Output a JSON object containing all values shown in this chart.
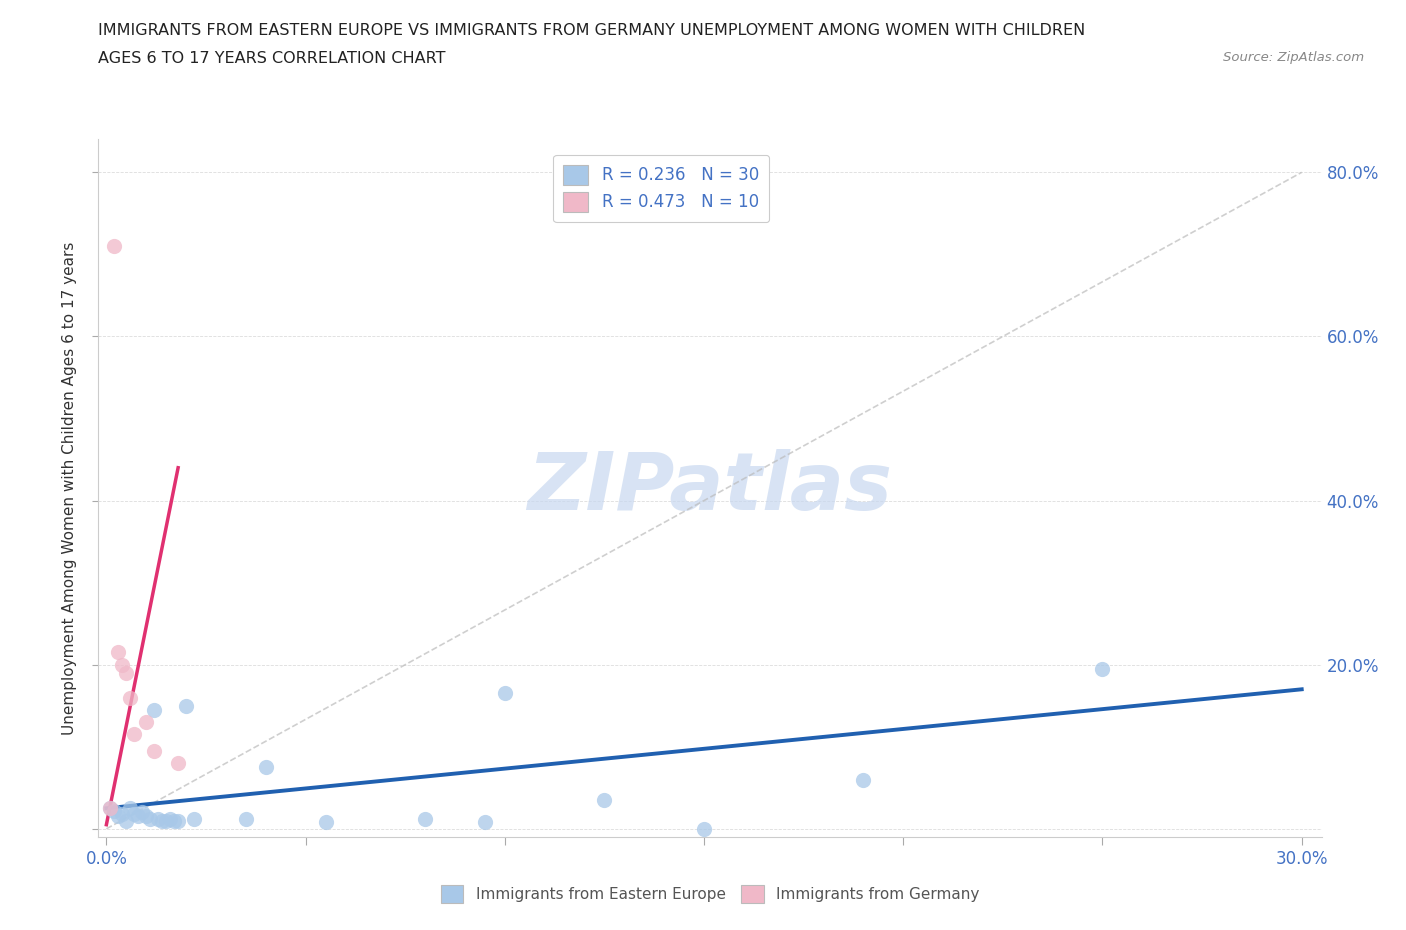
{
  "title_line1": "IMMIGRANTS FROM EASTERN EUROPE VS IMMIGRANTS FROM GERMANY UNEMPLOYMENT AMONG WOMEN WITH CHILDREN",
  "title_line2": "AGES 6 TO 17 YEARS CORRELATION CHART",
  "source": "Source: ZipAtlas.com",
  "ylabel": "Unemployment Among Women with Children Ages 6 to 17 years",
  "xlim": [
    -0.002,
    0.305
  ],
  "ylim": [
    -0.01,
    0.84
  ],
  "xticks": [
    0.0,
    0.05,
    0.1,
    0.15,
    0.2,
    0.25,
    0.3
  ],
  "yticks": [
    0.0,
    0.2,
    0.4,
    0.6,
    0.8
  ],
  "xtick_labels_show": [
    "0.0%",
    "",
    "",
    "",
    "",
    "",
    "30.0%"
  ],
  "ytick_labels_show": [
    "",
    "20.0%",
    "40.0%",
    "60.0%",
    "80.0%"
  ],
  "blue_scatter_x": [
    0.001,
    0.002,
    0.003,
    0.004,
    0.005,
    0.006,
    0.007,
    0.008,
    0.009,
    0.01,
    0.011,
    0.012,
    0.013,
    0.014,
    0.015,
    0.016,
    0.017,
    0.018,
    0.02,
    0.022,
    0.035,
    0.04,
    0.055,
    0.08,
    0.095,
    0.1,
    0.125,
    0.15,
    0.19,
    0.25
  ],
  "blue_scatter_y": [
    0.025,
    0.022,
    0.015,
    0.018,
    0.01,
    0.025,
    0.018,
    0.015,
    0.02,
    0.015,
    0.012,
    0.145,
    0.012,
    0.01,
    0.01,
    0.012,
    0.01,
    0.01,
    0.15,
    0.012,
    0.012,
    0.075,
    0.008,
    0.012,
    0.008,
    0.165,
    0.035,
    0.0,
    0.06,
    0.195
  ],
  "pink_scatter_x": [
    0.001,
    0.002,
    0.003,
    0.004,
    0.005,
    0.006,
    0.007,
    0.01,
    0.012,
    0.018
  ],
  "pink_scatter_y": [
    0.025,
    0.71,
    0.215,
    0.2,
    0.19,
    0.16,
    0.115,
    0.13,
    0.095,
    0.08
  ],
  "blue_line_x": [
    0.0,
    0.3
  ],
  "blue_line_y": [
    0.025,
    0.17
  ],
  "pink_line_x": [
    0.0,
    0.018
  ],
  "pink_line_y": [
    0.005,
    0.44
  ],
  "diag_line_x": [
    0.0,
    0.3
  ],
  "diag_line_y": [
    0.0,
    0.8
  ],
  "R_blue": "0.236",
  "N_blue": "30",
  "R_pink": "0.473",
  "N_pink": "10",
  "blue_scatter_color": "#A8C8E8",
  "pink_scatter_color": "#F0B8C8",
  "blue_line_color": "#2060B0",
  "pink_line_color": "#E03070",
  "diag_line_color": "#BBBBBB",
  "title_color": "#222222",
  "ylabel_color": "#333333",
  "tick_color": "#4472C4",
  "watermark_text": "ZIPatlas",
  "watermark_color": "#C8D8F0",
  "legend_label_blue": "Immigrants from Eastern Europe",
  "legend_label_pink": "Immigrants from Germany",
  "background_color": "#FFFFFF",
  "grid_color": "#DDDDDD"
}
